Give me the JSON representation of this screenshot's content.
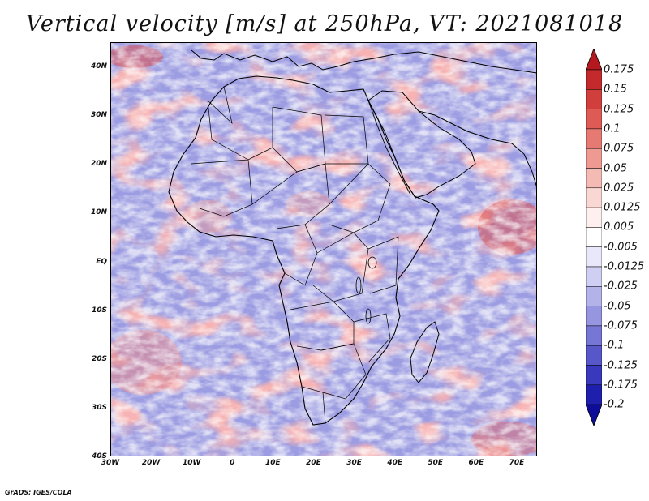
{
  "title": "Vertical velocity [m/s] at 250hPa, VT: 2021081018",
  "credit": "GrADS: IGES/COLA",
  "map": {
    "projection": "lat-lon",
    "lon_range": [
      -30,
      75
    ],
    "lat_range": [
      -40,
      45
    ],
    "x_ticks": [
      "30W",
      "20W",
      "10W",
      "0",
      "10E",
      "20E",
      "30E",
      "40E",
      "50E",
      "60E",
      "70E"
    ],
    "y_ticks": [
      "40N",
      "30N",
      "20N",
      "10N",
      "EQ",
      "10S",
      "20S",
      "30S",
      "40S"
    ],
    "field": "vertical velocity",
    "level": "250hPa",
    "units": "m/s",
    "valid_time": "2021081018"
  },
  "colorbar": {
    "labels": [
      "0.175",
      "0.15",
      "0.125",
      "0.1",
      "0.075",
      "0.05",
      "0.025",
      "0.0125",
      "0.005",
      "-0.005",
      "-0.0125",
      "-0.025",
      "-0.05",
      "-0.075",
      "-0.1",
      "-0.125",
      "-0.175",
      "-0.2"
    ],
    "colors": [
      "#b3191f",
      "#c42a2c",
      "#d13f3c",
      "#dd5a55",
      "#e67a73",
      "#ee9a93",
      "#f4bab4",
      "#f9d7d3",
      "#fdf0ee",
      "#ffffff",
      "#e8e8fa",
      "#cfcff3",
      "#b3b3ea",
      "#9595e0",
      "#7676d5",
      "#5757c9",
      "#3939bd",
      "#1f1fae",
      "#0d0d99"
    ]
  }
}
